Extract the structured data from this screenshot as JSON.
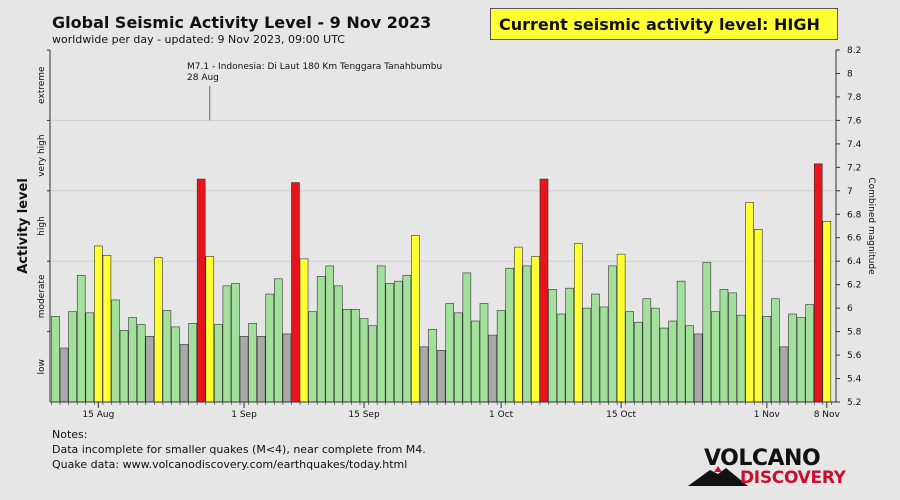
{
  "header": {
    "title": "Global Seismic Activity Level - 9 Nov 2023",
    "subtitle": "worldwide per day - updated:  9 Nov 2023, 09:00 UTC",
    "current_level": "Current seismic activity level: HIGH"
  },
  "notes": {
    "heading": "Notes:",
    "line1": "Data incomplete for smaller quakes (M<4), near complete from M4.",
    "line2": "Quake data: www.volcanodiscovery.com/earthquakes/today.html"
  },
  "logo": {
    "top": "VOLCANO",
    "bottom": "DISCOVERY"
  },
  "chart_data": {
    "type": "bar",
    "title": "Global Seismic Activity Level - 9 Nov 2023",
    "ylabel_left": "Activity level",
    "ylabel_right": "Combined magnitude",
    "ylim": [
      5.2,
      8.2
    ],
    "right_ticks": [
      "5.2",
      "5.4",
      "5.6",
      "5.8",
      "6",
      "6.2",
      "6.4",
      "6.6",
      "6.8",
      "7",
      "7.2",
      "7.4",
      "7.6",
      "7.8",
      "8",
      "8.2"
    ],
    "levels": [
      {
        "label": "low",
        "from": 5.2,
        "to": 5.8
      },
      {
        "label": "moderate",
        "from": 5.8,
        "to": 6.4
      },
      {
        "label": "high",
        "from": 6.4,
        "to": 7.0
      },
      {
        "label": "very high",
        "from": 7.0,
        "to": 7.6
      },
      {
        "label": "extreme",
        "from": 7.6,
        "to": 8.2
      }
    ],
    "gridlines": [
      6.4,
      7.0,
      7.6
    ],
    "x_ticks": [
      {
        "label": "15 Aug",
        "day": 5
      },
      {
        "label": "1 Sep",
        "day": 22
      },
      {
        "label": "15 Sep",
        "day": 36
      },
      {
        "label": "1 Oct",
        "day": 52
      },
      {
        "label": "15 Oct",
        "day": 66
      },
      {
        "label": "1 Nov",
        "day": 83
      },
      {
        "label": "8 Nov",
        "day": 90
      }
    ],
    "annotation": {
      "line1": "M7.1 - Indonesia: Di Laut 180 Km Tenggara Tanahbumbu",
      "line2": "28 Aug",
      "day": 18
    },
    "colors": {
      "gray": "#a9a9a9",
      "green": "#a3e09b",
      "yellow": "#ffff33",
      "red": "#e8141b"
    },
    "values": [
      5.93,
      5.66,
      5.97,
      6.28,
      5.96,
      6.53,
      6.45,
      6.07,
      5.81,
      5.92,
      5.86,
      5.76,
      6.43,
      5.98,
      5.84,
      5.69,
      5.87,
      7.1,
      6.44,
      5.86,
      6.19,
      6.21,
      5.76,
      5.87,
      5.76,
      6.12,
      6.25,
      5.78,
      7.07,
      6.42,
      5.97,
      6.27,
      6.36,
      6.19,
      5.99,
      5.99,
      5.91,
      5.85,
      6.36,
      6.21,
      6.23,
      6.28,
      6.62,
      5.67,
      5.82,
      5.64,
      6.04,
      5.96,
      6.3,
      5.89,
      6.04,
      5.77,
      5.98,
      6.34,
      6.52,
      6.36,
      6.44,
      7.1,
      6.16,
      5.95,
      6.17,
      6.55,
      6.0,
      6.12,
      6.01,
      6.36,
      6.46,
      5.97,
      5.88,
      6.08,
      6.0,
      5.83,
      5.89,
      6.23,
      5.85,
      5.78,
      6.39,
      5.97,
      6.16,
      6.13,
      5.94,
      6.9,
      6.67,
      5.93,
      6.08,
      5.67,
      5.95,
      5.92,
      6.03,
      7.23,
      6.74
    ],
    "categories": [
      "g",
      "gr",
      "g",
      "g",
      "g",
      "y",
      "y",
      "g",
      "g",
      "g",
      "g",
      "gr",
      "y",
      "g",
      "g",
      "gr",
      "g",
      "r",
      "y",
      "g",
      "g",
      "g",
      "gr",
      "g",
      "gr",
      "g",
      "g",
      "gr",
      "r",
      "y",
      "g",
      "g",
      "g",
      "g",
      "g",
      "g",
      "g",
      "g",
      "g",
      "g",
      "g",
      "g",
      "y",
      "gr",
      "g",
      "gr",
      "g",
      "g",
      "g",
      "g",
      "g",
      "gr",
      "g",
      "g",
      "y",
      "g",
      "y",
      "r",
      "g",
      "g",
      "g",
      "y",
      "g",
      "g",
      "g",
      "g",
      "y",
      "g",
      "g",
      "g",
      "g",
      "g",
      "g",
      "g",
      "g",
      "gr",
      "g",
      "g",
      "g",
      "g",
      "g",
      "y",
      "y",
      "g",
      "g",
      "gr",
      "g",
      "g",
      "g",
      "r",
      "y"
    ]
  }
}
